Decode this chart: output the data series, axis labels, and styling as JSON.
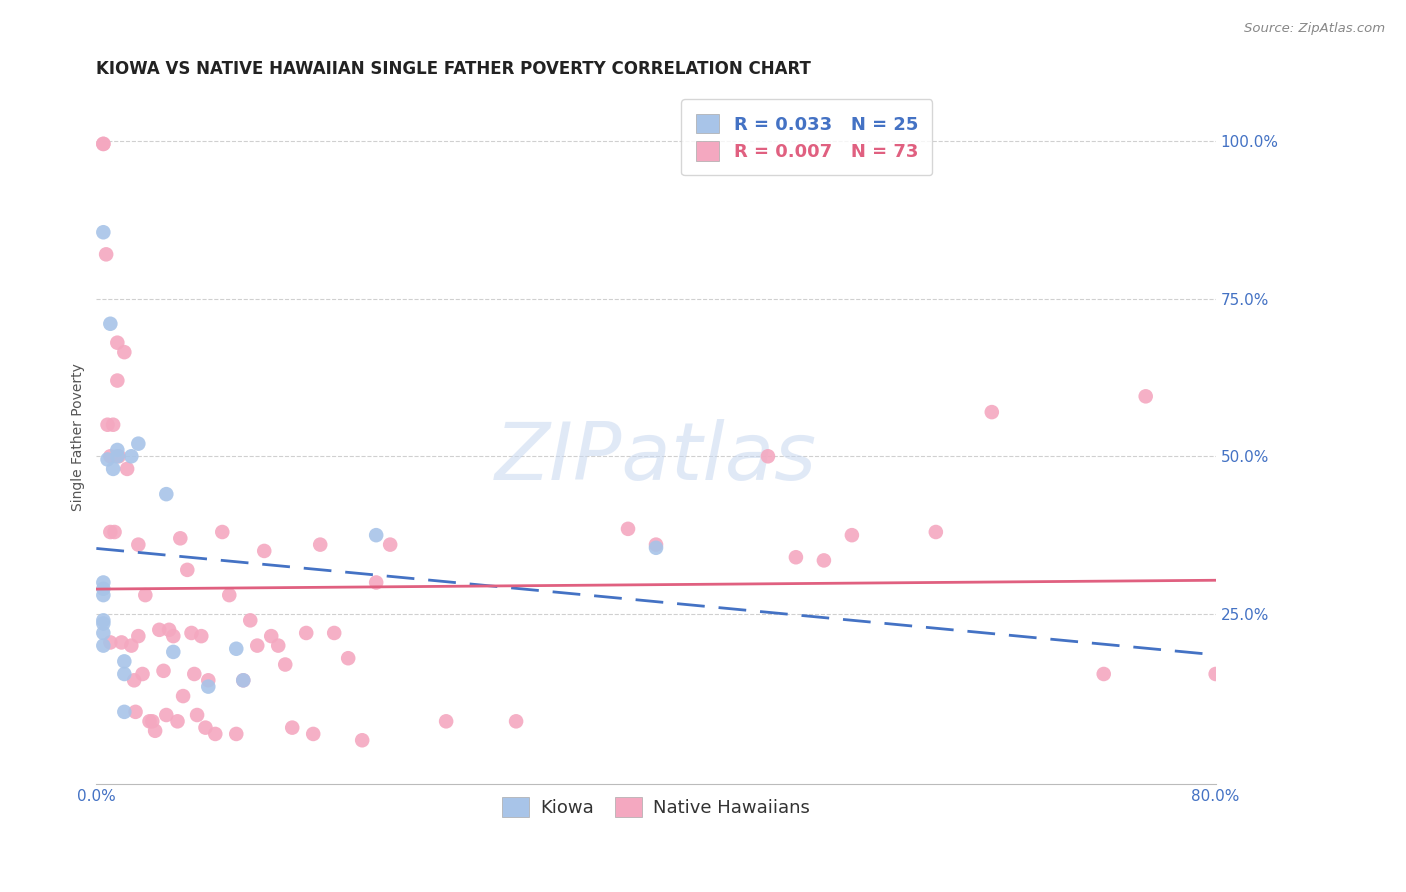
{
  "title": "KIOWA VS NATIVE HAWAIIAN SINGLE FATHER POVERTY CORRELATION CHART",
  "source": "Source: ZipAtlas.com",
  "ylabel": "Single Father Poverty",
  "xlim": [
    0.0,
    0.8
  ],
  "ylim": [
    -0.02,
    1.08
  ],
  "xticks": [
    0.0,
    0.2,
    0.4,
    0.6,
    0.8
  ],
  "xticklabels": [
    "0.0%",
    "",
    "",
    "",
    "80.0%"
  ],
  "yticks_right": [
    0.25,
    0.5,
    0.75,
    1.0
  ],
  "yticklabels_right": [
    "25.0%",
    "50.0%",
    "75.0%",
    "100.0%"
  ],
  "kiowa_R": "0.033",
  "kiowa_N": "25",
  "nh_R": "0.007",
  "nh_N": "73",
  "kiowa_color": "#a8c4e8",
  "nh_color": "#f4a8c0",
  "kiowa_line_color": "#4472c4",
  "nh_line_color": "#e06080",
  "watermark_color": "#c8d8f0",
  "kiowa_x": [
    0.005,
    0.005,
    0.005,
    0.005,
    0.005,
    0.005,
    0.005,
    0.005,
    0.008,
    0.01,
    0.012,
    0.015,
    0.015,
    0.02,
    0.02,
    0.02,
    0.025,
    0.03,
    0.05,
    0.055,
    0.08,
    0.1,
    0.105,
    0.2,
    0.4
  ],
  "kiowa_y": [
    0.855,
    0.3,
    0.29,
    0.28,
    0.24,
    0.235,
    0.22,
    0.2,
    0.495,
    0.71,
    0.48,
    0.51,
    0.5,
    0.175,
    0.155,
    0.095,
    0.5,
    0.52,
    0.44,
    0.19,
    0.135,
    0.195,
    0.145,
    0.375,
    0.355
  ],
  "nh_x": [
    0.005,
    0.005,
    0.007,
    0.008,
    0.01,
    0.01,
    0.01,
    0.012,
    0.013,
    0.015,
    0.015,
    0.016,
    0.018,
    0.02,
    0.022,
    0.025,
    0.027,
    0.028,
    0.03,
    0.03,
    0.033,
    0.035,
    0.038,
    0.04,
    0.042,
    0.045,
    0.048,
    0.05,
    0.052,
    0.055,
    0.058,
    0.06,
    0.062,
    0.065,
    0.068,
    0.07,
    0.072,
    0.075,
    0.078,
    0.08,
    0.085,
    0.09,
    0.095,
    0.1,
    0.105,
    0.11,
    0.115,
    0.12,
    0.125,
    0.13,
    0.135,
    0.14,
    0.15,
    0.155,
    0.16,
    0.17,
    0.18,
    0.19,
    0.2,
    0.21,
    0.25,
    0.3,
    0.38,
    0.4,
    0.48,
    0.5,
    0.52,
    0.54,
    0.6,
    0.64,
    0.72,
    0.75,
    0.8
  ],
  "nh_y": [
    0.995,
    0.995,
    0.82,
    0.55,
    0.5,
    0.38,
    0.205,
    0.55,
    0.38,
    0.68,
    0.62,
    0.5,
    0.205,
    0.665,
    0.48,
    0.2,
    0.145,
    0.095,
    0.36,
    0.215,
    0.155,
    0.28,
    0.08,
    0.08,
    0.065,
    0.225,
    0.16,
    0.09,
    0.225,
    0.215,
    0.08,
    0.37,
    0.12,
    0.32,
    0.22,
    0.155,
    0.09,
    0.215,
    0.07,
    0.145,
    0.06,
    0.38,
    0.28,
    0.06,
    0.145,
    0.24,
    0.2,
    0.35,
    0.215,
    0.2,
    0.17,
    0.07,
    0.22,
    0.06,
    0.36,
    0.22,
    0.18,
    0.05,
    0.3,
    0.36,
    0.08,
    0.08,
    0.385,
    0.36,
    0.5,
    0.34,
    0.335,
    0.375,
    0.38,
    0.57,
    0.155,
    0.595,
    0.155
  ],
  "background_color": "#ffffff",
  "grid_color": "#d0d0d0",
  "title_fontsize": 12,
  "axis_label_fontsize": 10,
  "tick_fontsize": 11,
  "legend_fontsize": 13
}
